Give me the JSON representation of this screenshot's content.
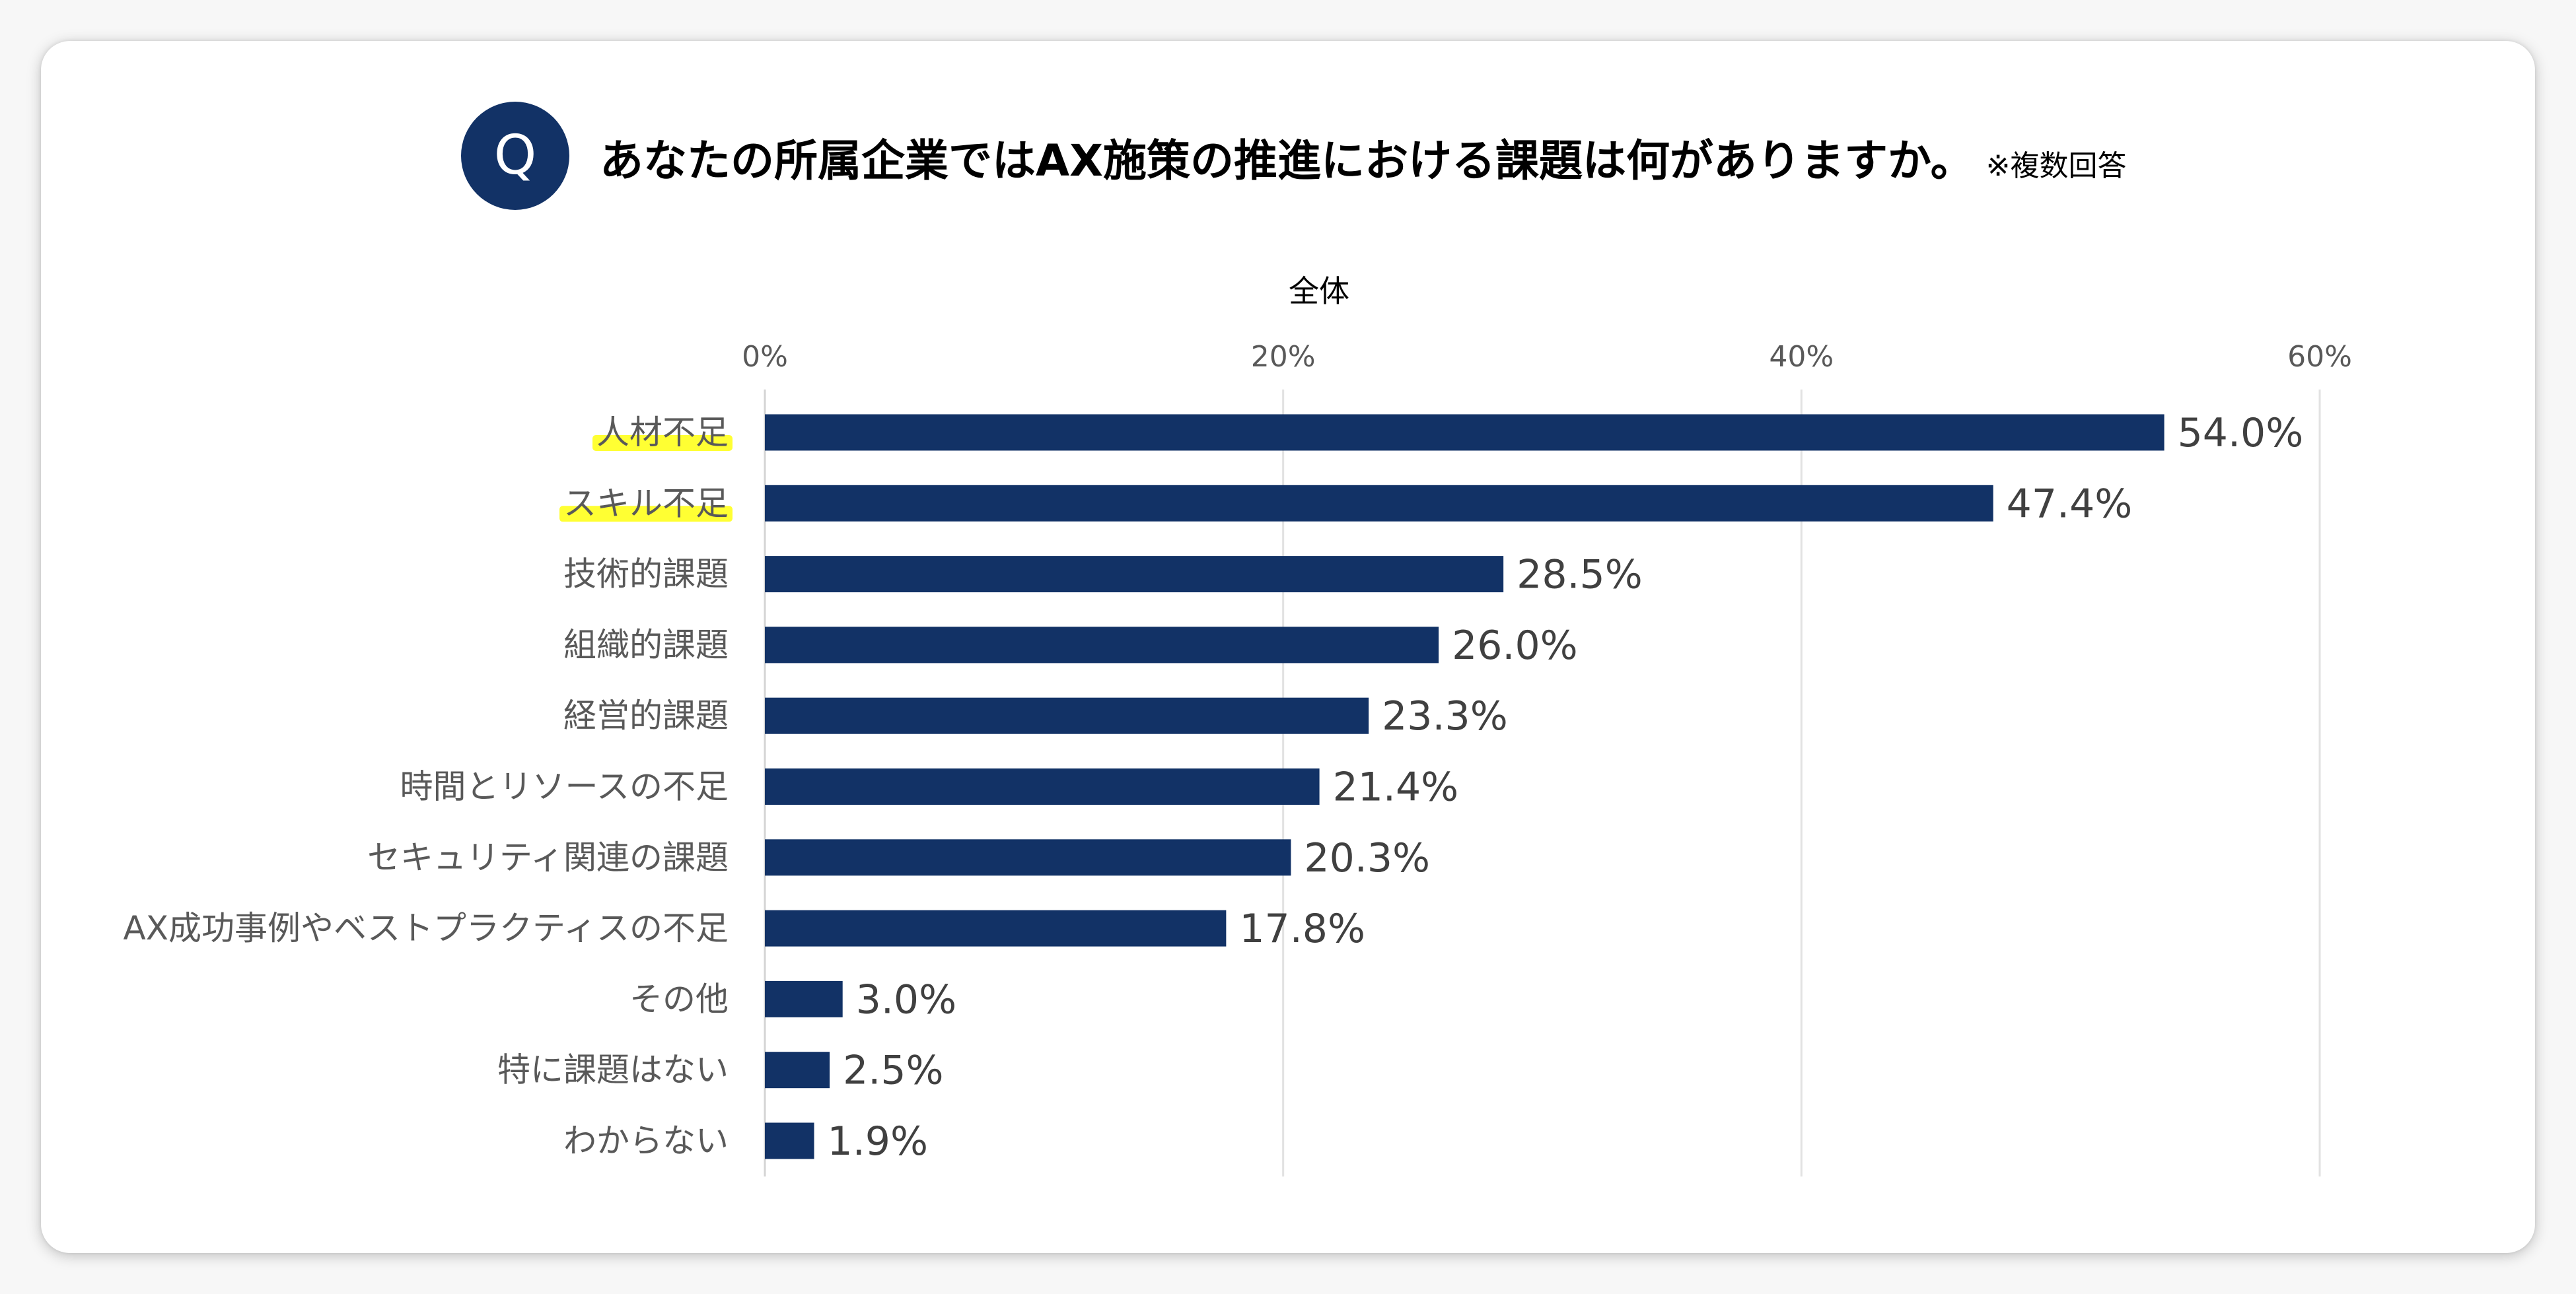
{
  "header": {
    "badge": "Q",
    "title": "あなたの所属企業ではAX施策の推進における課題は何がありますか。",
    "note": "※複数回答"
  },
  "colors": {
    "bar": "#123266",
    "highlight": "#ffff33",
    "badge": "#123266"
  },
  "chart_data": {
    "type": "bar",
    "orientation": "horizontal",
    "series": [
      {
        "name": "全体",
        "values": [
          54.0,
          47.4,
          28.5,
          26.0,
          23.3,
          21.4,
          20.3,
          17.8,
          3.0,
          2.5,
          1.9
        ]
      }
    ],
    "categories": [
      "人材不足",
      "スキル不足",
      "技術的課題",
      "組織的課題",
      "経営的課題",
      "時間とリソースの不足",
      "セキュリティ関連の課題",
      "AX成功事例やベストプラクティスの不足",
      "その他",
      "特に課題はない",
      "わからない"
    ],
    "highlighted_categories": [
      "人材不足",
      "スキル不足"
    ],
    "value_labels": [
      "54.0%",
      "47.4%",
      "28.5%",
      "26.0%",
      "23.3%",
      "21.4%",
      "20.3%",
      "17.8%",
      "3.0%",
      "2.5%",
      "1.9%"
    ],
    "xlim": [
      0,
      60
    ],
    "xticks": [
      0,
      20,
      40,
      60
    ],
    "xtick_labels": [
      "0%",
      "20%",
      "40%",
      "60%"
    ],
    "axis_position": "top",
    "grid": true,
    "legend": "none"
  }
}
